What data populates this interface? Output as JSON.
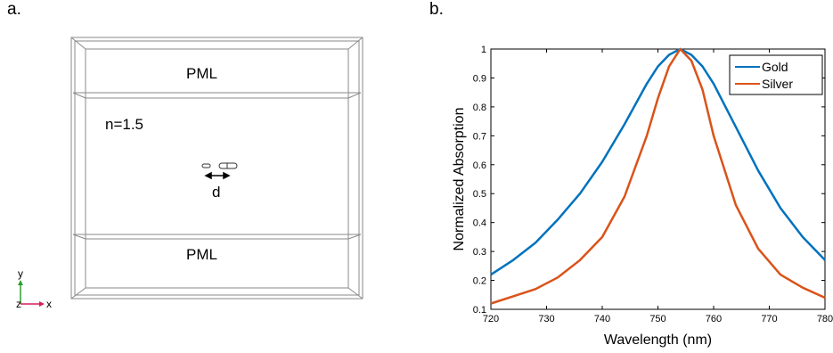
{
  "panels": {
    "a": {
      "label": "a.",
      "pml_top": "PML",
      "pml_bottom": "PML",
      "index_label": "n=1.5",
      "gap_label": "d",
      "axes": {
        "y": "y",
        "z": "z",
        "x": "x"
      }
    },
    "b": {
      "label": "b."
    }
  },
  "colors": {
    "gold": "#0072BD",
    "silver": "#D95319",
    "axis_x": "#d81b60",
    "axis_y": "#2e9e2e"
  },
  "chart_data": {
    "type": "line",
    "xlabel": "Wavelength (nm)",
    "ylabel": "Normalized Absorption",
    "xlim": [
      720,
      780
    ],
    "ylim": [
      0.1,
      1.0
    ],
    "xticks": [
      720,
      730,
      740,
      750,
      760,
      770,
      780
    ],
    "yticks": [
      0.1,
      0.2,
      0.3,
      0.4,
      0.5,
      0.6,
      0.7,
      0.8,
      0.9,
      1
    ],
    "legend": "top-right",
    "grid": false,
    "x": [
      720,
      724,
      728,
      732,
      736,
      740,
      744,
      748,
      750,
      752,
      754,
      756,
      758,
      760,
      764,
      768,
      772,
      776,
      780
    ],
    "series": [
      {
        "name": "Gold",
        "values": [
          0.22,
          0.27,
          0.33,
          0.41,
          0.5,
          0.61,
          0.74,
          0.88,
          0.94,
          0.98,
          1.0,
          0.98,
          0.94,
          0.88,
          0.73,
          0.58,
          0.45,
          0.35,
          0.27
        ]
      },
      {
        "name": "Silver",
        "values": [
          0.12,
          0.145,
          0.17,
          0.21,
          0.27,
          0.35,
          0.49,
          0.7,
          0.83,
          0.94,
          1.0,
          0.96,
          0.86,
          0.7,
          0.46,
          0.31,
          0.22,
          0.175,
          0.14
        ]
      }
    ]
  }
}
